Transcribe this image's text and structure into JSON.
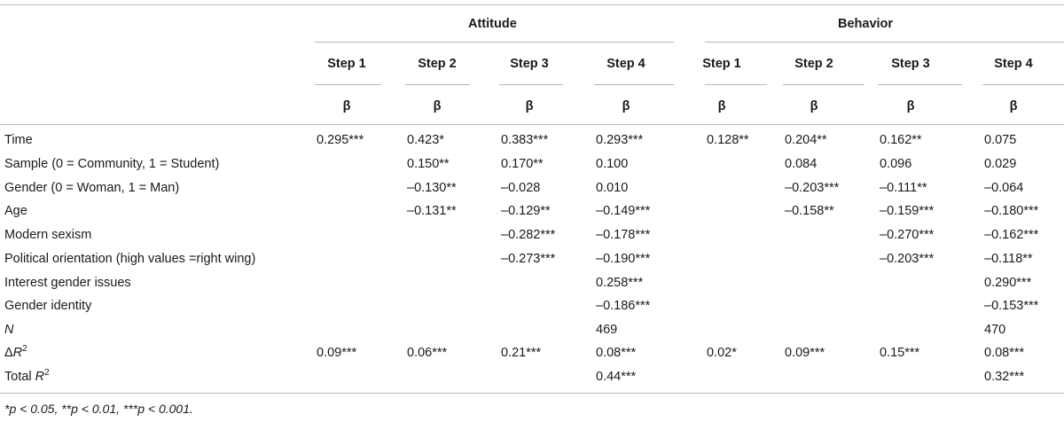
{
  "groups": {
    "attitude": "Attitude",
    "behavior": "Behavior"
  },
  "steps": [
    "Step 1",
    "Step 2",
    "Step 3",
    "Step 4",
    "Step 1",
    "Step 2",
    "Step 3",
    "Step 4"
  ],
  "beta": "β",
  "rows": [
    {
      "label": "Time",
      "values": [
        "0.295***",
        "0.423*",
        "0.383***",
        "0.293***",
        "0.128**",
        "0.204**",
        "0.162**",
        "0.075"
      ]
    },
    {
      "label": "Sample (0 = Community, 1 = Student)",
      "values": [
        "",
        "0.150**",
        "0.170**",
        "0.100",
        "",
        "0.084",
        "0.096",
        "0.029"
      ]
    },
    {
      "label": "Gender (0 = Woman, 1 = Man)",
      "values": [
        "",
        "–0.130**",
        "–0.028",
        "0.010",
        "",
        "–0.203***",
        "–0.111**",
        "–0.064"
      ]
    },
    {
      "label": "Age",
      "values": [
        "",
        "–0.131**",
        "–0.129**",
        "–0.149***",
        "",
        "–0.158**",
        "–0.159***",
        "–0.180***"
      ]
    },
    {
      "label": "Modern sexism",
      "values": [
        "",
        "",
        "–0.282***",
        "–0.178***",
        "",
        "",
        "–0.270***",
        "–0.162***"
      ]
    },
    {
      "label": "Political orientation (high values =right wing)",
      "values": [
        "",
        "",
        "–0.273***",
        "–0.190***",
        "",
        "",
        "–0.203***",
        "–0.118**"
      ]
    },
    {
      "label": "Interest gender issues",
      "values": [
        "",
        "",
        "",
        "0.258***",
        "",
        "",
        "",
        "0.290***"
      ]
    },
    {
      "label": "Gender identity",
      "values": [
        "",
        "",
        "",
        "–0.186***",
        "",
        "",
        "",
        "–0.153***"
      ]
    },
    {
      "label": "N",
      "values": [
        "",
        "",
        "",
        "469",
        "",
        "",
        "",
        "470"
      ]
    },
    {
      "label": "ΔR",
      "values": [
        "0.09***",
        "0.06***",
        "0.21***",
        "0.08***",
        "0.02*",
        "0.09***",
        "0.15***",
        "0.08***"
      ]
    },
    {
      "label": "Total R",
      "values": [
        "",
        "",
        "",
        "0.44***",
        "",
        "",
        "",
        "0.32***"
      ]
    }
  ],
  "superscript": "2",
  "footnote": "*p < 0.05, **p < 0.01, ***p < 0.001."
}
